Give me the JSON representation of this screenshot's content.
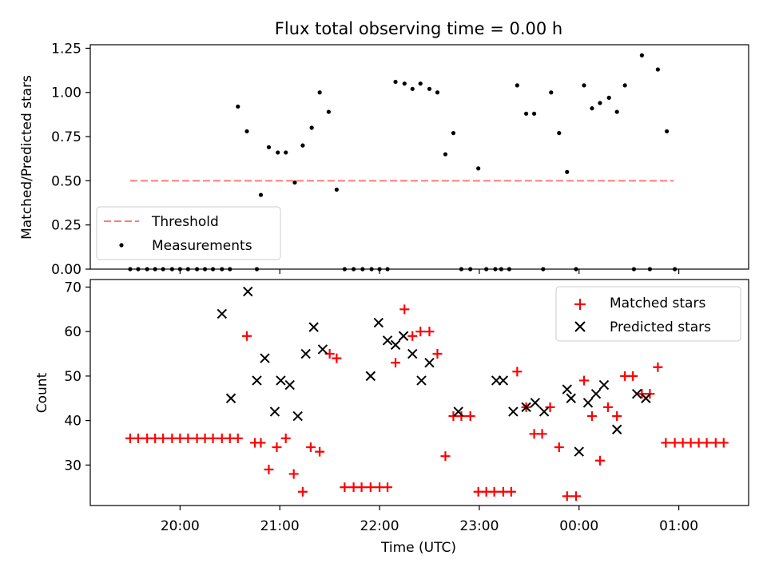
{
  "figure": {
    "title": "Flux total observing time = 0.00 h"
  },
  "chart_data": [
    {
      "type": "scatter",
      "title": "Flux total observing time = 0.00 h",
      "xlabel": "",
      "ylabel": "Matched/Predicted stars",
      "x_unit": "hours since 19:00 UTC",
      "xlim": [
        0.1,
        6.7
      ],
      "ylim": [
        0.0,
        1.27
      ],
      "yticks": [
        0.0,
        0.25,
        0.5,
        0.75,
        1.0,
        1.25
      ],
      "ytick_labels": [
        "0.00",
        "0.25",
        "0.50",
        "0.75",
        "1.00",
        "1.25"
      ],
      "threshold": {
        "name": "Threshold",
        "value": 0.5,
        "x_range": [
          0.5,
          5.95
        ],
        "color": "#ff7b7b"
      },
      "legend": {
        "placement": "lower-left",
        "entries": [
          "Threshold",
          "Measurements"
        ]
      },
      "series": [
        {
          "name": "Measurements",
          "color": "#000000",
          "x": [
            0.5,
            0.58,
            0.67,
            0.75,
            0.83,
            0.92,
            1.0,
            1.08,
            1.17,
            1.25,
            1.33,
            1.42,
            1.5,
            1.58,
            1.67,
            1.77,
            1.81,
            1.89,
            1.98,
            2.06,
            2.15,
            2.23,
            2.32,
            2.4,
            2.49,
            2.57,
            2.65,
            2.74,
            2.83,
            2.92,
            3.0,
            3.08,
            3.16,
            3.25,
            3.33,
            3.41,
            3.5,
            3.58,
            3.66,
            3.74,
            3.82,
            3.91,
            3.99,
            4.07,
            4.16,
            4.22,
            4.3,
            4.38,
            4.47,
            4.55,
            4.64,
            4.72,
            4.8,
            4.88,
            4.97,
            5.05,
            5.13,
            5.21,
            5.3,
            5.38,
            5.46,
            5.55,
            5.63,
            5.71,
            5.79,
            5.88,
            5.96
          ],
          "y": [
            0,
            0,
            0,
            0,
            0,
            0,
            0,
            0,
            0,
            0,
            0,
            0,
            0,
            0.92,
            0.78,
            0,
            0.42,
            0.69,
            0.66,
            0.66,
            0.49,
            0.7,
            0.8,
            1.0,
            0.89,
            0.45,
            0,
            0,
            0,
            0,
            0,
            0,
            1.06,
            1.05,
            1.02,
            1.05,
            1.02,
            1.0,
            0.65,
            0.77,
            0,
            0,
            0.57,
            0,
            0,
            0,
            0,
            1.04,
            0.88,
            0.88,
            0,
            1.0,
            0.77,
            0.55,
            0,
            1.04,
            0.91,
            0.94,
            0.97,
            0.89,
            1.04,
            0,
            1.21,
            0,
            1.13,
            0.78,
            0
          ]
        }
      ]
    },
    {
      "type": "scatter",
      "title": "",
      "xlabel": "Time (UTC)",
      "ylabel": "Count",
      "x_unit": "hours since 19:00 UTC",
      "xlim": [
        0.1,
        6.7
      ],
      "ylim": [
        20.9,
        71.7
      ],
      "yticks": [
        30,
        40,
        50,
        60,
        70
      ],
      "ytick_labels": [
        "30",
        "40",
        "50",
        "60",
        "70"
      ],
      "xticks": [
        1,
        2,
        3,
        4,
        5,
        6
      ],
      "xtick_labels": [
        "20:00",
        "21:00",
        "22:00",
        "23:00",
        "00:00",
        "01:00"
      ],
      "legend": {
        "placement": "top-right",
        "entries": [
          "Matched stars",
          "Predicted stars"
        ]
      },
      "series": [
        {
          "name": "Matched stars",
          "marker": "plus",
          "color": "#ff0000",
          "x": [
            0.5,
            0.58,
            0.67,
            0.75,
            0.83,
            0.92,
            1.0,
            1.08,
            1.17,
            1.25,
            1.33,
            1.42,
            1.5,
            1.58,
            1.67,
            1.75,
            1.81,
            1.89,
            1.97,
            2.06,
            2.14,
            2.23,
            2.31,
            2.4,
            2.5,
            2.57,
            2.65,
            2.74,
            2.82,
            2.91,
            3.0,
            3.08,
            3.16,
            3.25,
            3.33,
            3.41,
            3.5,
            3.58,
            3.66,
            3.74,
            3.82,
            3.91,
            3.99,
            4.07,
            4.15,
            4.24,
            4.32,
            4.38,
            4.47,
            4.55,
            4.63,
            4.71,
            4.8,
            4.88,
            4.97,
            5.05,
            5.13,
            5.21,
            5.29,
            5.38,
            5.46,
            5.54,
            5.63,
            5.71,
            5.79,
            5.87,
            5.96,
            6.04,
            6.12,
            6.2,
            6.28,
            6.37,
            6.45
          ],
          "y": [
            36,
            36,
            36,
            36,
            36,
            36,
            36,
            36,
            36,
            36,
            36,
            36,
            36,
            36,
            59,
            35,
            35,
            29,
            34,
            36,
            28,
            24,
            34,
            33,
            55,
            54,
            25,
            25,
            25,
            25,
            25,
            25,
            53,
            65,
            59,
            60,
            60,
            55,
            32,
            41,
            41,
            41,
            24,
            24,
            24,
            24,
            24,
            51,
            43,
            37,
            37,
            43,
            34,
            23,
            23,
            49,
            41,
            31,
            43,
            41,
            50,
            50,
            46,
            46,
            52,
            35,
            35,
            35,
            35,
            35,
            35,
            35,
            35
          ]
        },
        {
          "name": "Predicted stars",
          "marker": "x",
          "color": "#000000",
          "x": [
            1.42,
            1.51,
            1.68,
            1.77,
            1.85,
            1.95,
            2.01,
            2.1,
            2.18,
            2.26,
            2.34,
            2.43,
            2.91,
            2.99,
            3.08,
            3.16,
            3.24,
            3.33,
            3.42,
            3.5,
            3.79,
            4.17,
            4.24,
            4.34,
            4.47,
            4.56,
            4.65,
            4.88,
            4.92,
            5.0,
            5.09,
            5.17,
            5.25,
            5.38,
            5.58,
            5.67
          ],
          "y": [
            64,
            45,
            69,
            49,
            54,
            42,
            49,
            48,
            41,
            55,
            61,
            56,
            50,
            62,
            58,
            57,
            59,
            55,
            49,
            53,
            42,
            49,
            49,
            42,
            43,
            44,
            42,
            47,
            45,
            33,
            44,
            46,
            48,
            38,
            46,
            45
          ]
        }
      ]
    }
  ]
}
